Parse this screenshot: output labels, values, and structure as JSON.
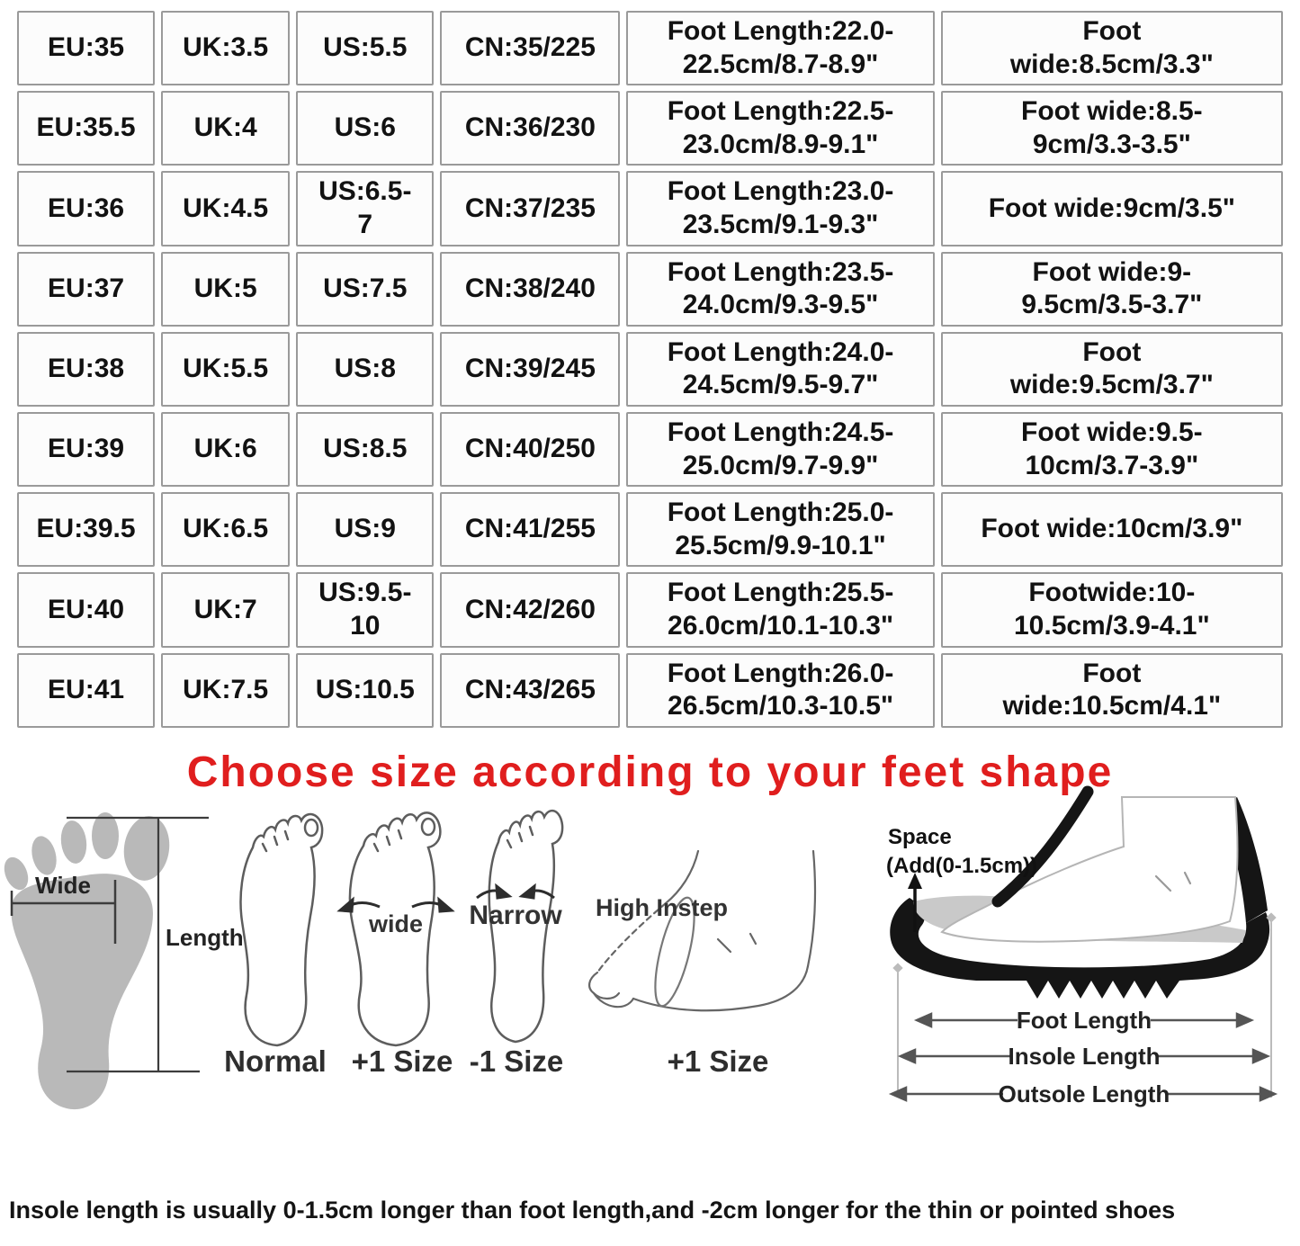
{
  "size_table": {
    "rows": [
      {
        "eu": "EU:35",
        "uk": "UK:3.5",
        "us": "US:5.5",
        "cn": "CN:35/225",
        "foot_length": "Foot Length:22.0-\n22.5cm/8.7-8.9\"",
        "foot_wide": "Foot\nwide:8.5cm/3.3\""
      },
      {
        "eu": "EU:35.5",
        "uk": "UK:4",
        "us": "US:6",
        "cn": "CN:36/230",
        "foot_length": "Foot Length:22.5-\n23.0cm/8.9-9.1\"",
        "foot_wide": "Foot wide:8.5-\n9cm/3.3-3.5\""
      },
      {
        "eu": "EU:36",
        "uk": "UK:4.5",
        "us": "US:6.5-\n7",
        "cn": "CN:37/235",
        "foot_length": "Foot Length:23.0-\n23.5cm/9.1-9.3\"",
        "foot_wide": "Foot wide:9cm/3.5\""
      },
      {
        "eu": "EU:37",
        "uk": "UK:5",
        "us": "US:7.5",
        "cn": "CN:38/240",
        "foot_length": "Foot Length:23.5-\n24.0cm/9.3-9.5\"",
        "foot_wide": "Foot wide:9-\n9.5cm/3.5-3.7\""
      },
      {
        "eu": "EU:38",
        "uk": "UK:5.5",
        "us": "US:8",
        "cn": "CN:39/245",
        "foot_length": "Foot Length:24.0-\n24.5cm/9.5-9.7\"",
        "foot_wide": "Foot\nwide:9.5cm/3.7\""
      },
      {
        "eu": "EU:39",
        "uk": "UK:6",
        "us": "US:8.5",
        "cn": "CN:40/250",
        "foot_length": "Foot Length:24.5-\n25.0cm/9.7-9.9\"",
        "foot_wide": "Foot wide:9.5-\n10cm/3.7-3.9\""
      },
      {
        "eu": "EU:39.5",
        "uk": "UK:6.5",
        "us": "US:9",
        "cn": "CN:41/255",
        "foot_length": "Foot Length:25.0-\n25.5cm/9.9-10.1\"",
        "foot_wide": "Foot wide:10cm/3.9\""
      },
      {
        "eu": "EU:40",
        "uk": "UK:7",
        "us": "US:9.5-\n10",
        "cn": "CN:42/260",
        "foot_length": "Foot Length:25.5-\n26.0cm/10.1-10.3\"",
        "foot_wide": "Footwide:10-\n10.5cm/3.9-4.1\""
      },
      {
        "eu": "EU:41",
        "uk": "UK:7.5",
        "us": "US:10.5",
        "cn": "CN:43/265",
        "foot_length": "Foot Length:26.0-\n26.5cm/10.3-10.5\"",
        "foot_wide": "Foot\nwide:10.5cm/4.1\""
      }
    ]
  },
  "heading": {
    "text": "Choose size according to your feet shape",
    "color": "#e01e1e"
  },
  "measure_diagram": {
    "wide_label": "Wide",
    "length_label": "Length"
  },
  "feet_diagrams": {
    "normal_label": "Normal",
    "wide_note": "wide",
    "wide_size_label": "+1 Size",
    "narrow_note": "Narrow",
    "narrow_size_label": "-1 Size",
    "instep_note": "High Instep",
    "instep_size_label": "+1 Size"
  },
  "shoe_diagram": {
    "space_label": "Space",
    "space_note": "(Add(0-1.5cm))",
    "foot_length_label": "Foot Length",
    "insole_length_label": "Insole Length",
    "outsole_length_label": "Outsole Length"
  },
  "footer_note": "Insole length is usually 0-1.5cm longer than foot length,and -2cm longer for the thin or pointed shoes"
}
